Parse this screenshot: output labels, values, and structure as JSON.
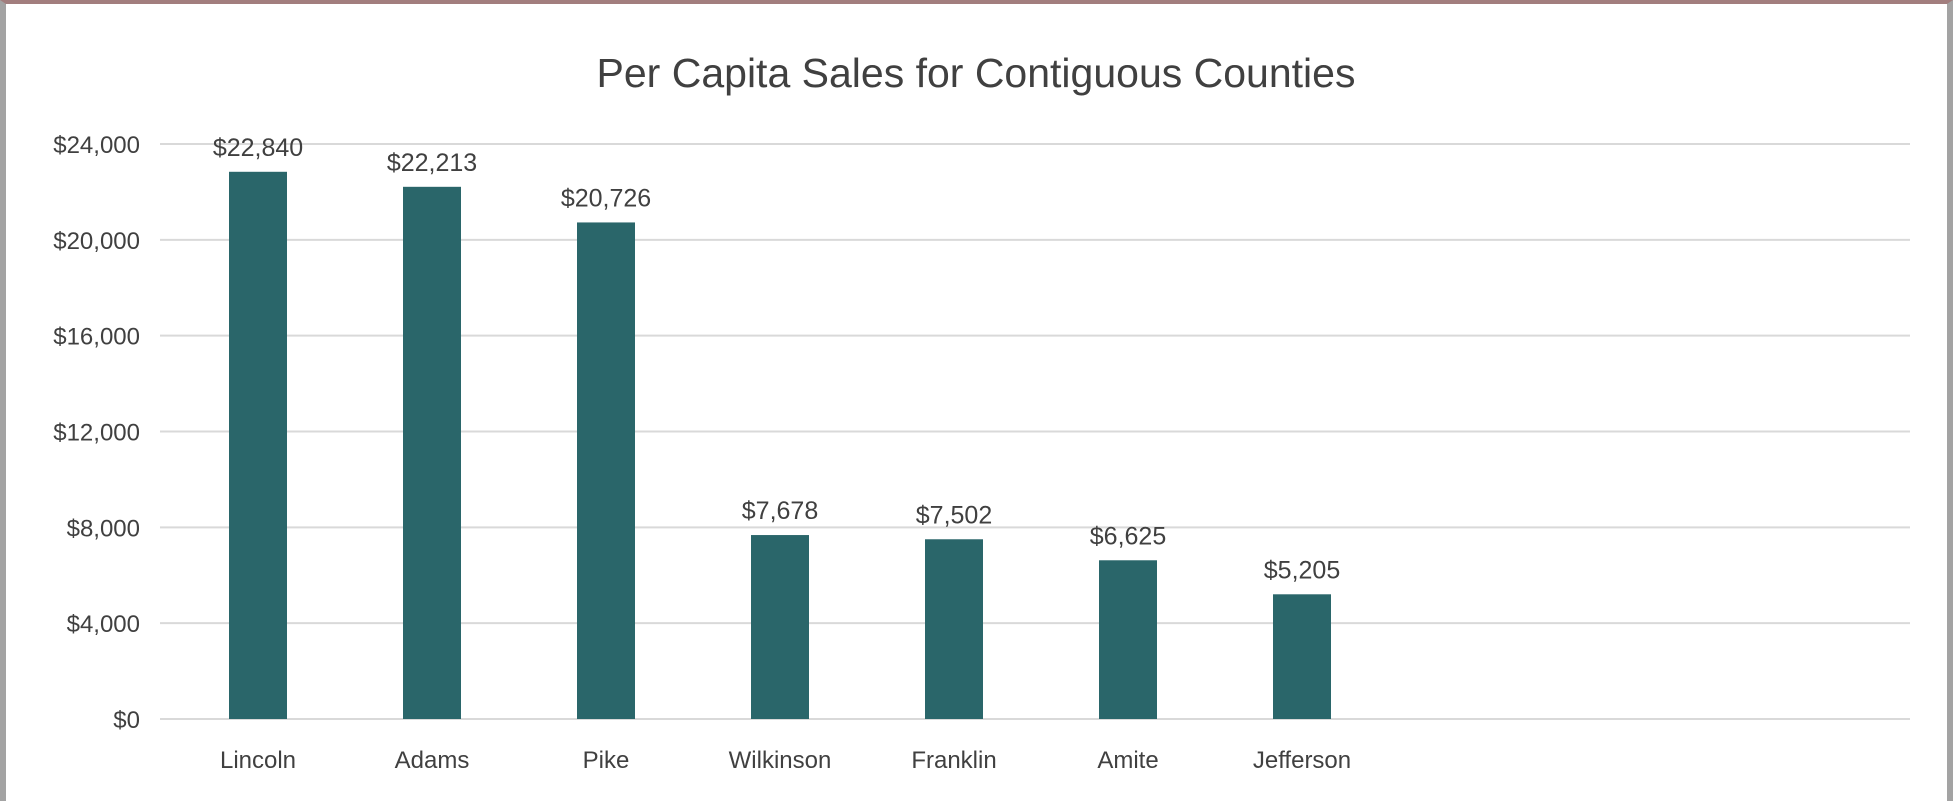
{
  "colors": {
    "bar": "#2a666a",
    "grid": "#d9d9d9",
    "text": "#404040"
  },
  "chart_data": {
    "type": "bar",
    "title": "Per Capita Sales for Contiguous Counties",
    "xlabel": "",
    "ylabel": "",
    "categories": [
      "Lincoln",
      "Adams",
      "Pike",
      "Wilkinson",
      "Franklin",
      "Amite",
      "Jefferson"
    ],
    "values": [
      22840,
      22213,
      20726,
      7678,
      7502,
      6625,
      5205
    ],
    "data_labels": [
      "$22,840",
      "$22,213",
      "$20,726",
      "$7,678",
      "$7,502",
      "$6,625",
      "$5,205"
    ],
    "y_ticks": [
      0,
      4000,
      8000,
      12000,
      16000,
      20000,
      24000
    ],
    "y_tick_labels": [
      "$0",
      "$4,000",
      "$8,000",
      "$12,000",
      "$16,000",
      "$20,000",
      "$24,000"
    ],
    "ylim": [
      0,
      24000
    ],
    "grid": true,
    "legend": "none"
  }
}
